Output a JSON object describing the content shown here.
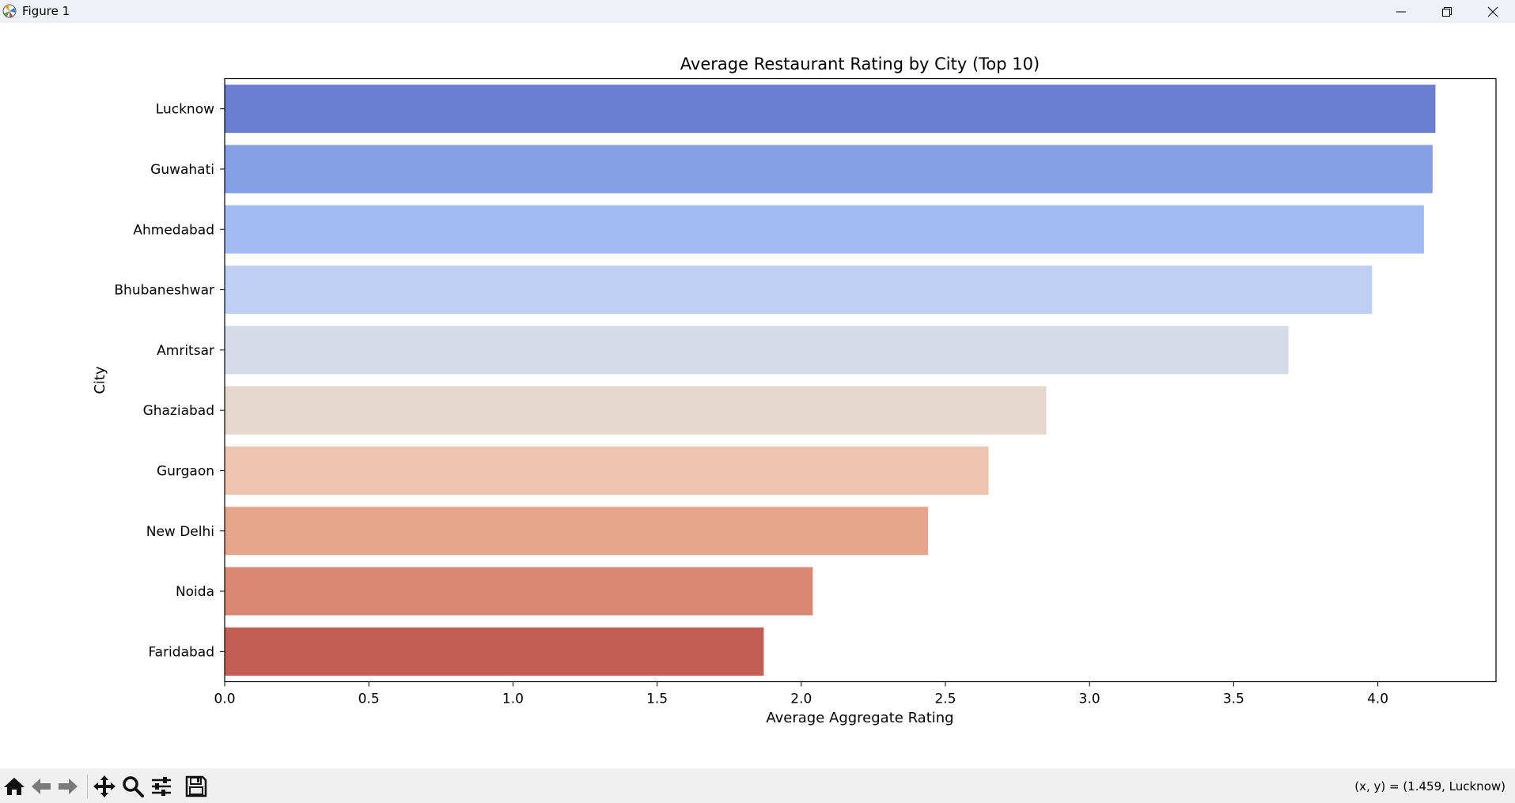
{
  "window": {
    "title": "Figure 1"
  },
  "toolbar": {
    "tools": [
      {
        "name": "home-icon"
      },
      {
        "name": "back-arrow-icon"
      },
      {
        "name": "forward-arrow-icon"
      },
      {
        "name": "pan-move-icon"
      },
      {
        "name": "zoom-magnifier-icon"
      },
      {
        "name": "configure-subplots-icon"
      },
      {
        "name": "save-floppy-icon"
      }
    ],
    "coords": "(x, y) = (1.459, Lucknow)"
  },
  "chart_data": {
    "type": "bar",
    "orientation": "horizontal",
    "title": "Average Restaurant Rating by City (Top 10)",
    "xlabel": "Average Aggregate Rating",
    "ylabel": "City",
    "categories": [
      "Lucknow",
      "Guwahati",
      "Ahmedabad",
      "Bhubaneshwar",
      "Amritsar",
      "Ghaziabad",
      "Gurgaon",
      "New Delhi",
      "Noida",
      "Faridabad"
    ],
    "values": [
      4.2,
      4.19,
      4.16,
      3.98,
      3.69,
      2.85,
      2.65,
      2.44,
      2.04,
      1.87
    ],
    "colors": [
      "#6a7fd2",
      "#849fe5",
      "#a1bbf2",
      "#bdcff2",
      "#d5dbe8",
      "#e5d7ce",
      "#ecc4b0",
      "#e6a68c",
      "#da8670",
      "#c35e54"
    ],
    "xlim": [
      0,
      4.41
    ],
    "xticks": [
      "0.0",
      "0.5",
      "1.0",
      "1.5",
      "2.0",
      "2.5",
      "3.0",
      "3.5",
      "4.0"
    ],
    "grid": false,
    "legend": "none"
  }
}
